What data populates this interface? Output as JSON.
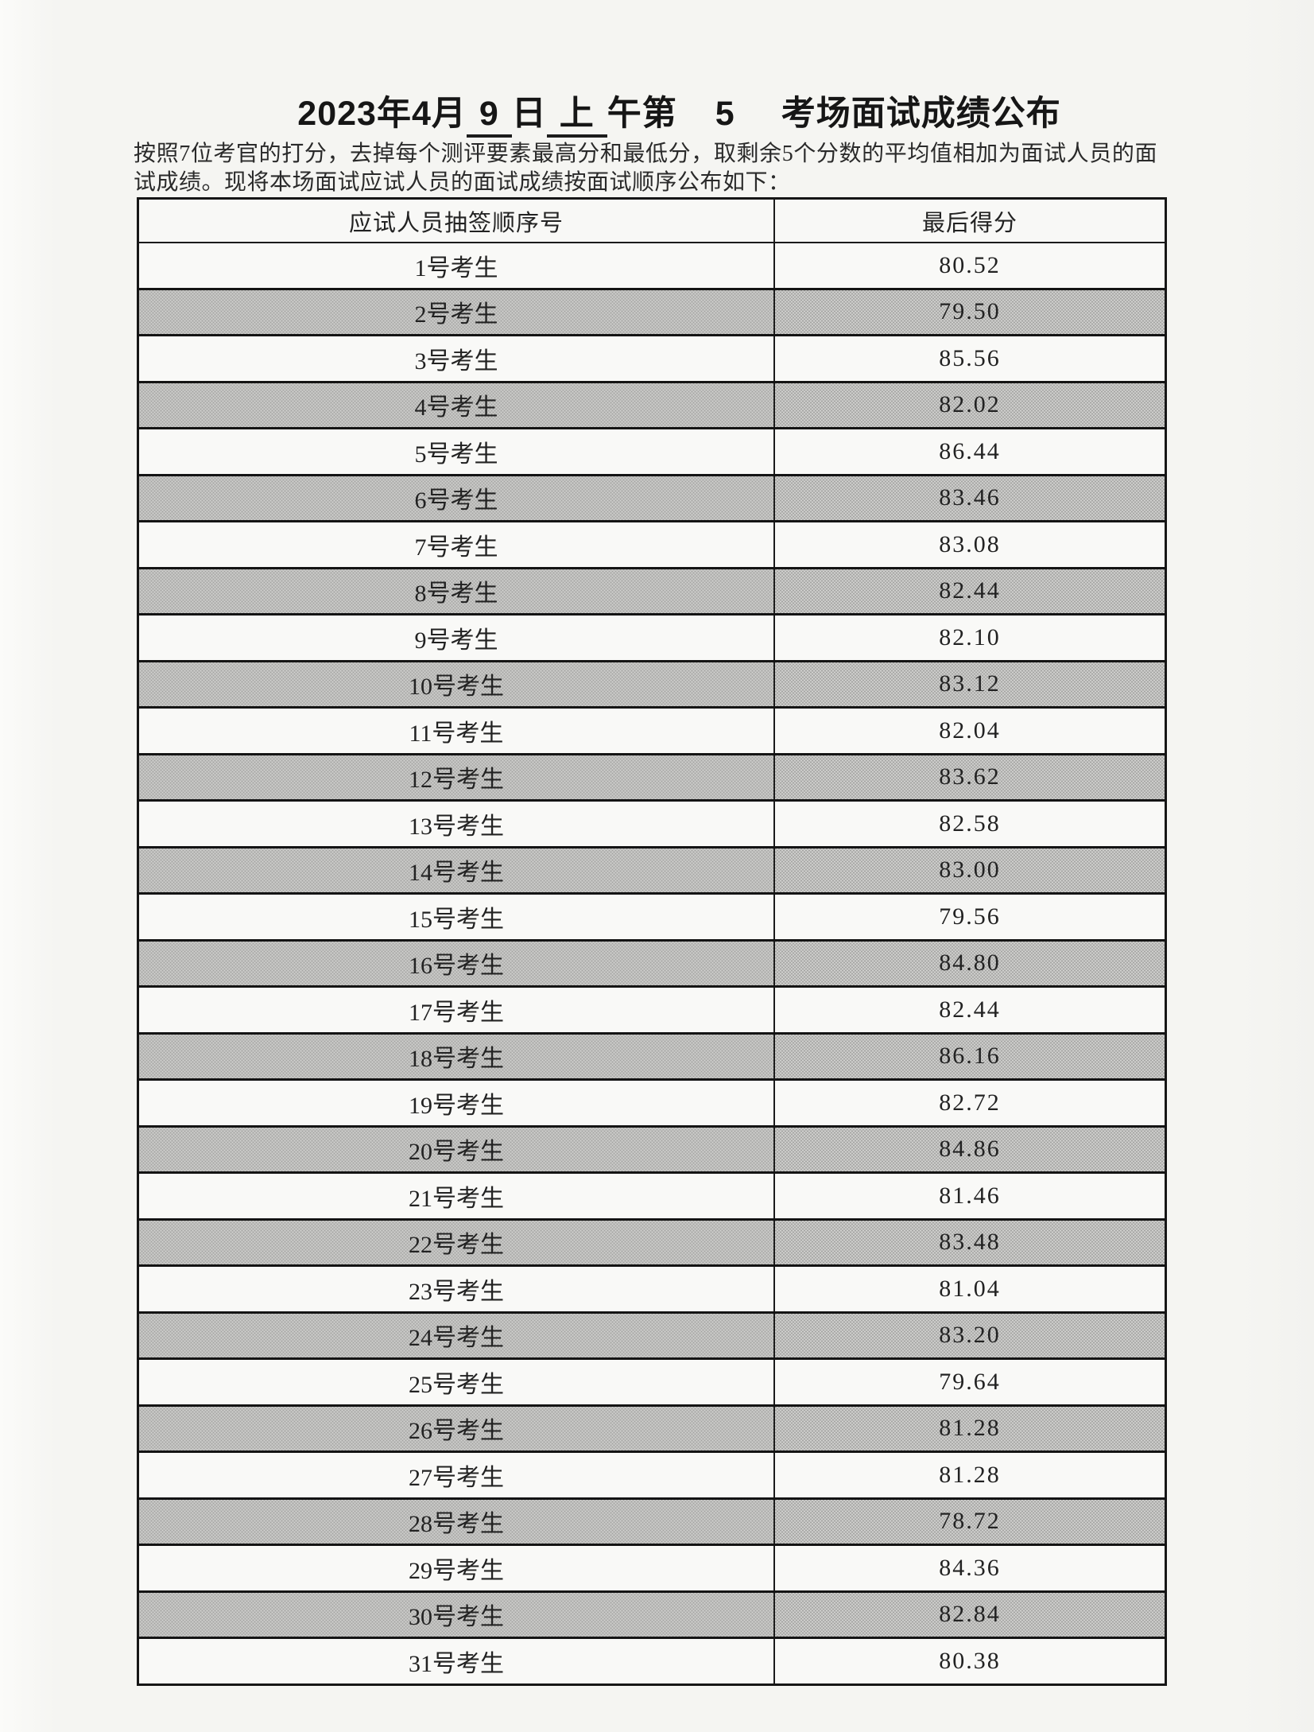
{
  "title": {
    "prefix": "2023年4月",
    "day": "9",
    "mid1": "日",
    "ampm": "上",
    "mid2": "午第",
    "room_no": "5",
    "suffix": "考场面试成绩公布"
  },
  "intro": {
    "line1": "按照7位考官的打分，去掉每个测评要素最高分和最低分，取剩余5个分数的平均值相加为面试人员的面",
    "line2": "试成绩。现将本场面试应试人员的面试成绩按面试顺序公布如下："
  },
  "table": {
    "col1_header": "应试人员抽签顺序号",
    "col2_header": "最后得分",
    "rows": [
      {
        "candidate": "1号考生",
        "score": "80.52"
      },
      {
        "candidate": "2号考生",
        "score": "79.50"
      },
      {
        "candidate": "3号考生",
        "score": "85.56"
      },
      {
        "candidate": "4号考生",
        "score": "82.02"
      },
      {
        "candidate": "5号考生",
        "score": "86.44"
      },
      {
        "candidate": "6号考生",
        "score": "83.46"
      },
      {
        "candidate": "7号考生",
        "score": "83.08"
      },
      {
        "candidate": "8号考生",
        "score": "82.44"
      },
      {
        "candidate": "9号考生",
        "score": "82.10"
      },
      {
        "candidate": "10号考生",
        "score": "83.12"
      },
      {
        "candidate": "11号考生",
        "score": "82.04"
      },
      {
        "candidate": "12号考生",
        "score": "83.62"
      },
      {
        "candidate": "13号考生",
        "score": "82.58"
      },
      {
        "candidate": "14号考生",
        "score": "83.00"
      },
      {
        "candidate": "15号考生",
        "score": "79.56"
      },
      {
        "candidate": "16号考生",
        "score": "84.80"
      },
      {
        "candidate": "17号考生",
        "score": "82.44"
      },
      {
        "candidate": "18号考生",
        "score": "86.16"
      },
      {
        "candidate": "19号考生",
        "score": "82.72"
      },
      {
        "candidate": "20号考生",
        "score": "84.86"
      },
      {
        "candidate": "21号考生",
        "score": "81.46"
      },
      {
        "candidate": "22号考生",
        "score": "83.48"
      },
      {
        "candidate": "23号考生",
        "score": "81.04"
      },
      {
        "candidate": "24号考生",
        "score": "83.20"
      },
      {
        "candidate": "25号考生",
        "score": "79.64"
      },
      {
        "candidate": "26号考生",
        "score": "81.28"
      },
      {
        "candidate": "27号考生",
        "score": "81.28"
      },
      {
        "candidate": "28号考生",
        "score": "78.72"
      },
      {
        "candidate": "29号考生",
        "score": "84.36"
      },
      {
        "candidate": "30号考生",
        "score": "82.84"
      },
      {
        "candidate": "31号考生",
        "score": "80.38"
      }
    ]
  },
  "colors": {
    "page_background": "#f6f6f3",
    "shaded_row": "#bcbcbc",
    "table_border": "#1b1b1b",
    "text": "#222222"
  }
}
